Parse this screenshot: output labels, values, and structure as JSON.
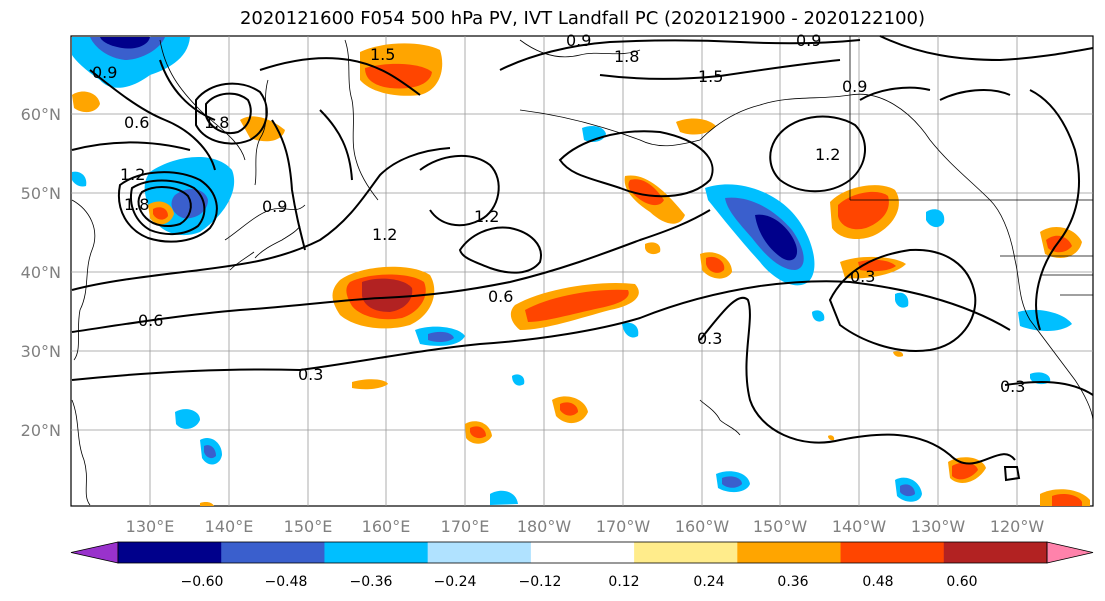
{
  "title": "2020121600 F054 500 hPa PV, IVT Landfall PC (2020121900 - 2020122100)",
  "map": {
    "lon_labels": [
      "130°E",
      "140°E",
      "150°E",
      "160°E",
      "170°E",
      "180°W",
      "170°W",
      "160°W",
      "150°W",
      "140°W",
      "130°W",
      "120°W"
    ],
    "lat_labels": [
      "60°N",
      "50°N",
      "40°N",
      "30°N",
      "20°N"
    ],
    "contour_labels": [
      "0.3",
      "0.3",
      "0.3",
      "0.3",
      "0.6",
      "0.6",
      "0.6",
      "0.9",
      "0.9",
      "0.9",
      "0.9",
      "0.9",
      "1.2",
      "1.2",
      "1.2",
      "1.2",
      "1.5",
      "1.5",
      "1.8",
      "1.8",
      "1.8"
    ],
    "label_color": "#808080"
  },
  "colorbar": {
    "colors": [
      "#9932cc",
      "#00008b",
      "#3a5fcd",
      "#00bfff",
      "#b0e2ff",
      "#ffffff",
      "#ffec8b",
      "#ffa500",
      "#ff4500",
      "#b22222",
      "#ff82ab"
    ],
    "tick_labels": [
      "−0.60",
      "−0.48",
      "−0.36",
      "−0.24",
      "−0.12",
      "0.12",
      "0.24",
      "0.36",
      "0.48",
      "0.60"
    ]
  }
}
